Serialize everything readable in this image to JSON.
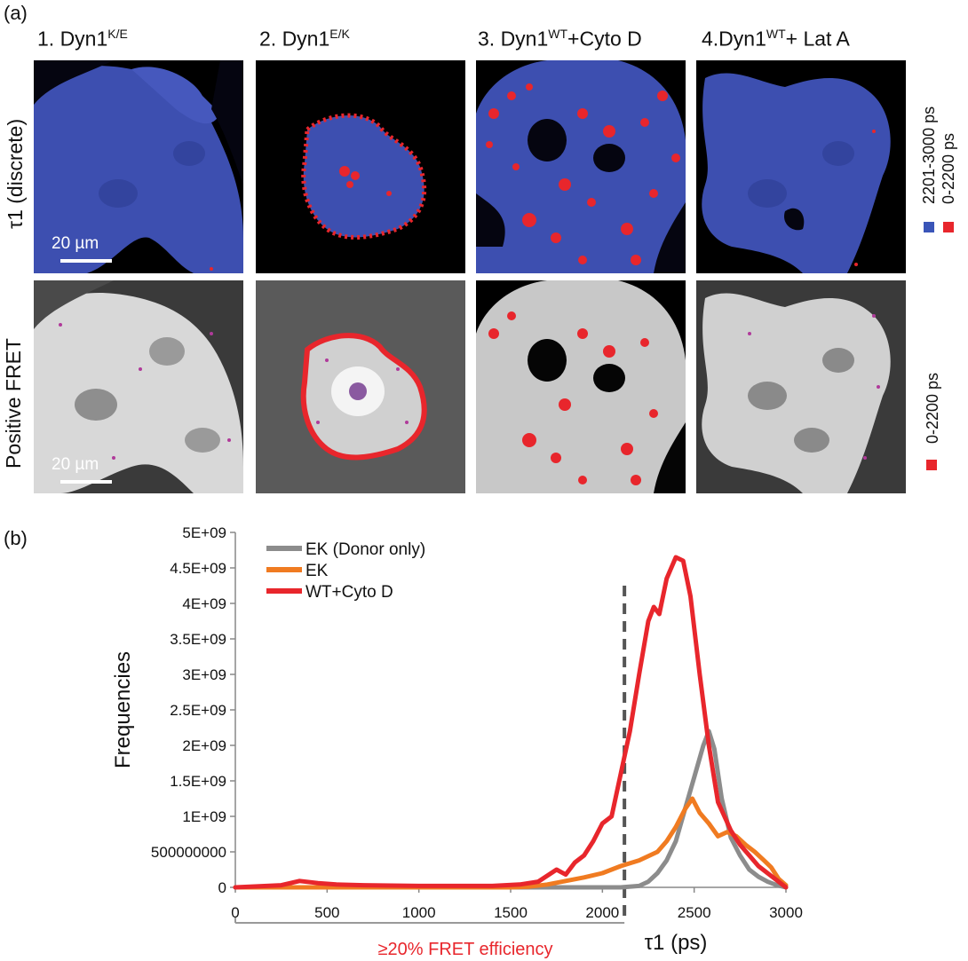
{
  "panel_a_label": "(a)",
  "panel_b_label": "(b)",
  "columns": [
    {
      "prefix": "1. Dyn1",
      "sup": "K/E",
      "suffix": ""
    },
    {
      "prefix": "2. Dyn1",
      "sup": "E/K",
      "suffix": ""
    },
    {
      "prefix": "3. Dyn1",
      "sup": "WT",
      "suffix": "+Cyto D"
    },
    {
      "prefix": "4.Dyn1",
      "sup": "WT",
      "suffix": "+ Lat A"
    }
  ],
  "rows": {
    "top_label": "τ1 (discrete)",
    "bottom_label": "Positive FRET"
  },
  "scale_bar_label": "20 µm",
  "legend_top": {
    "blue_label": "2201-3000 ps",
    "red_label": "0-2200 ps",
    "blue_color": "#3a55b8",
    "red_color": "#e8262c"
  },
  "legend_bottom": {
    "red_label": "0-2200 ps",
    "red_color": "#e8262c"
  },
  "chart_data": {
    "type": "line",
    "xlabel": "τ1 (ps)",
    "ylabel": "Frequencies",
    "xlim": [
      0,
      3000
    ],
    "ylim": [
      0,
      5000000000
    ],
    "x_ticks": [
      0,
      500,
      1000,
      1500,
      2000,
      2500,
      3000
    ],
    "y_ticks": [
      0,
      500000000,
      1000000000,
      1500000000,
      2000000000,
      2500000000,
      3000000000,
      3500000000,
      4000000000,
      4500000000,
      5000000000
    ],
    "y_tick_labels": [
      "0",
      "500000000",
      "1E+09",
      "1.5E+09",
      "2E+09",
      "2.5E+09",
      "3E+09",
      "3.5E+09",
      "4E+09",
      "4.5E+09",
      "5E+09"
    ],
    "legend_position": "top-left",
    "series": [
      {
        "name": "EK (Donor only)",
        "color": "#8c8c8c",
        "points": [
          [
            0,
            0
          ],
          [
            2000,
            0
          ],
          [
            2100,
            0
          ],
          [
            2200,
            20000000
          ],
          [
            2250,
            80000000
          ],
          [
            2300,
            200000000
          ],
          [
            2350,
            380000000
          ],
          [
            2400,
            650000000
          ],
          [
            2450,
            1100000000
          ],
          [
            2500,
            1550000000
          ],
          [
            2550,
            2000000000
          ],
          [
            2580,
            2200000000
          ],
          [
            2610,
            1950000000
          ],
          [
            2650,
            1250000000
          ],
          [
            2700,
            700000000
          ],
          [
            2750,
            450000000
          ],
          [
            2800,
            250000000
          ],
          [
            2850,
            150000000
          ],
          [
            2900,
            80000000
          ],
          [
            2950,
            30000000
          ],
          [
            3000,
            0
          ]
        ]
      },
      {
        "name": "EK",
        "color": "#f07b21",
        "points": [
          [
            0,
            0
          ],
          [
            1500,
            0
          ],
          [
            1600,
            10000000
          ],
          [
            1700,
            40000000
          ],
          [
            1800,
            90000000
          ],
          [
            1900,
            140000000
          ],
          [
            2000,
            200000000
          ],
          [
            2100,
            300000000
          ],
          [
            2200,
            380000000
          ],
          [
            2300,
            500000000
          ],
          [
            2350,
            650000000
          ],
          [
            2400,
            850000000
          ],
          [
            2450,
            1100000000
          ],
          [
            2490,
            1250000000
          ],
          [
            2530,
            1050000000
          ],
          [
            2580,
            900000000
          ],
          [
            2630,
            720000000
          ],
          [
            2680,
            780000000
          ],
          [
            2730,
            720000000
          ],
          [
            2780,
            600000000
          ],
          [
            2830,
            500000000
          ],
          [
            2880,
            380000000
          ],
          [
            2920,
            280000000
          ],
          [
            2960,
            120000000
          ],
          [
            3000,
            30000000
          ]
        ]
      },
      {
        "name": "WT+Cyto D",
        "color": "#e8262c",
        "points": [
          [
            0,
            0
          ],
          [
            250,
            30000000
          ],
          [
            350,
            90000000
          ],
          [
            450,
            60000000
          ],
          [
            550,
            40000000
          ],
          [
            700,
            30000000
          ],
          [
            1000,
            20000000
          ],
          [
            1400,
            20000000
          ],
          [
            1550,
            40000000
          ],
          [
            1650,
            80000000
          ],
          [
            1750,
            250000000
          ],
          [
            1800,
            180000000
          ],
          [
            1850,
            350000000
          ],
          [
            1900,
            450000000
          ],
          [
            1950,
            650000000
          ],
          [
            2000,
            900000000
          ],
          [
            2050,
            1000000000
          ],
          [
            2100,
            1600000000
          ],
          [
            2150,
            2200000000
          ],
          [
            2200,
            3000000000
          ],
          [
            2250,
            3750000000
          ],
          [
            2280,
            3950000000
          ],
          [
            2310,
            3850000000
          ],
          [
            2350,
            4350000000
          ],
          [
            2400,
            4650000000
          ],
          [
            2440,
            4600000000
          ],
          [
            2480,
            4100000000
          ],
          [
            2530,
            3000000000
          ],
          [
            2580,
            2000000000
          ],
          [
            2630,
            1200000000
          ],
          [
            2700,
            800000000
          ],
          [
            2750,
            600000000
          ],
          [
            2800,
            450000000
          ],
          [
            2850,
            300000000
          ],
          [
            2900,
            200000000
          ],
          [
            2950,
            100000000
          ],
          [
            3000,
            0
          ]
        ]
      }
    ],
    "threshold_x": 2120,
    "threshold_label": "≥20% FRET efficiency",
    "threshold_label_color": "#e8262c"
  }
}
